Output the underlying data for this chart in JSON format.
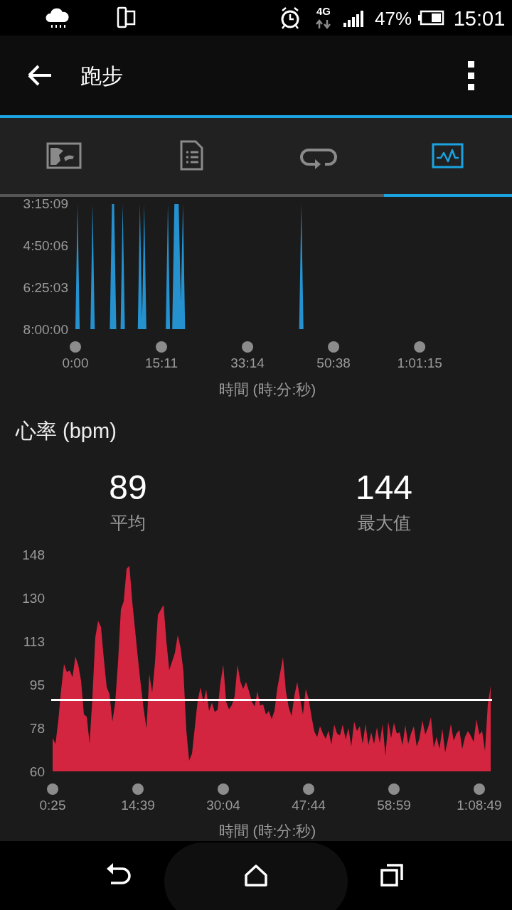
{
  "chart_data": [
    {
      "type": "area",
      "annotations": [
        "跑步",
        "4G",
        "47%",
        "15:01"
      ],
      "xlabel": "時間 (時:分:秒)",
      "categories": [
        "0:00",
        null,
        null,
        null,
        null,
        null,
        null,
        null,
        null,
        null,
        null,
        null,
        null,
        null,
        null,
        null,
        null,
        null,
        null,
        null,
        null,
        null,
        null,
        null,
        null,
        null,
        null,
        null,
        null,
        null,
        null,
        null,
        null,
        null,
        null,
        null,
        null,
        null,
        null,
        null,
        "15:11",
        null,
        null,
        null,
        null,
        null,
        null,
        null,
        null,
        null,
        null,
        null,
        null,
        null,
        null,
        null,
        null,
        null,
        null,
        null,
        null,
        null,
        null,
        null,
        null,
        null,
        null,
        null,
        null,
        null,
        null,
        null,
        null,
        null,
        null,
        null,
        null,
        null,
        null,
        null,
        "33:14",
        null,
        null,
        null,
        null,
        null,
        null,
        null,
        null,
        null,
        null,
        null,
        null,
        null,
        null,
        null,
        null,
        null,
        null,
        null,
        null,
        null,
        null,
        null,
        null,
        null,
        null,
        null,
        null,
        null,
        null,
        null,
        null,
        null,
        null,
        null,
        null,
        null,
        null,
        null,
        "50:38",
        null,
        null,
        null,
        null,
        null,
        null,
        null,
        null,
        null,
        null,
        null,
        null,
        null,
        null,
        null,
        null,
        null,
        null,
        null,
        null,
        null,
        null,
        null,
        null,
        null,
        null,
        null,
        null,
        null,
        null,
        null,
        null,
        null,
        null,
        null,
        null,
        null,
        null,
        null,
        "1:01:15",
        null,
        null,
        null,
        null,
        null,
        null,
        null,
        null,
        null,
        null,
        null,
        null,
        null,
        null,
        null,
        null,
        null,
        null,
        null,
        null,
        null,
        null,
        null,
        null,
        null,
        null,
        null,
        null,
        null,
        null,
        null,
        null,
        null
      ],
      "series": [
        {
          "color": "#2591cf",
          "values": [
            28800,
            11800,
            28800,
            28800,
            28800,
            28800,
            28800,
            28800,
            11800,
            28800,
            28800,
            28800,
            28800,
            28800,
            28800,
            28800,
            28800,
            11800,
            11800,
            28800,
            28800,
            28800,
            11800,
            28800,
            28800,
            28800,
            28800,
            28800,
            28800,
            28800,
            11800,
            27500,
            11800,
            28800,
            28800,
            28800,
            28800,
            28800,
            28800,
            28800,
            28800,
            28800,
            28800,
            11800,
            28800,
            28800,
            11800,
            11800,
            11800,
            25000,
            11800,
            28800,
            28800,
            28800,
            28800,
            28800,
            28800,
            28800,
            28800,
            28800,
            28800,
            28800,
            28800,
            28800,
            28800,
            28800,
            28800,
            28800,
            28800,
            28800,
            28800,
            28800,
            28800,
            28800,
            28800,
            28800,
            28800,
            28800,
            28800,
            28800,
            28800,
            28800,
            28800,
            28800,
            28800,
            28800,
            28800,
            28800,
            28800,
            28800,
            28800,
            28800,
            28800,
            28800,
            28800,
            28800,
            28800,
            28800,
            28800,
            28800,
            28800,
            28800,
            28800,
            28800,
            28800,
            11800,
            28800,
            28800,
            28800,
            28800,
            28800,
            28800,
            28800,
            28800,
            28800,
            28800,
            28800,
            28800,
            28800,
            28800,
            28800,
            28800,
            28800,
            28800,
            28800,
            28800,
            28800,
            28800,
            28800,
            28800,
            28800,
            28800,
            28800,
            28800,
            28800,
            28800,
            28800,
            28800,
            28800,
            28800,
            28800,
            28800,
            28800,
            28800,
            28800,
            28800,
            28800,
            28800,
            28800,
            28800,
            28800,
            28800,
            28800,
            28800,
            28800,
            28800,
            28800,
            28800,
            28800,
            28800,
            28800,
            28800,
            28800,
            28800,
            28800,
            28800,
            28800,
            28800,
            28800,
            28800,
            28800,
            28800,
            28800,
            28800,
            28800,
            28800,
            28800,
            28800,
            28800,
            28800,
            28800,
            28800,
            28800,
            28800,
            28800,
            28800,
            28800,
            28800,
            28800,
            28800,
            28800,
            28800,
            28800,
            28800
          ]
        }
      ],
      "ylim": [
        28800,
        11709
      ],
      "yticks": [
        {
          "value": 28800,
          "label": "8:00:00"
        },
        {
          "value": 23103,
          "label": "6:25:03"
        },
        {
          "value": 17406,
          "label": "4:50:06"
        },
        {
          "value": 11709,
          "label": "3:15:09"
        }
      ]
    },
    {
      "type": "area",
      "title": "心率 (bpm)",
      "annotations": [
        "89",
        "平均",
        "144",
        "最大值"
      ],
      "xlabel": "時間 (時:分:秒)",
      "categories": [
        "0:25",
        null,
        null,
        null,
        null,
        null,
        null,
        null,
        null,
        null,
        null,
        null,
        null,
        null,
        null,
        null,
        null,
        null,
        null,
        null,
        null,
        null,
        null,
        null,
        null,
        null,
        null,
        null,
        null,
        null,
        "14:39",
        null,
        null,
        null,
        null,
        null,
        null,
        null,
        null,
        null,
        null,
        null,
        null,
        null,
        null,
        null,
        null,
        null,
        null,
        null,
        null,
        null,
        null,
        null,
        null,
        null,
        null,
        null,
        null,
        null,
        "30:04",
        null,
        null,
        null,
        null,
        null,
        null,
        null,
        null,
        null,
        null,
        null,
        null,
        null,
        null,
        null,
        null,
        null,
        null,
        null,
        null,
        null,
        null,
        null,
        null,
        null,
        null,
        null,
        null,
        null,
        "47:44",
        null,
        null,
        null,
        null,
        null,
        null,
        null,
        null,
        null,
        null,
        null,
        null,
        null,
        null,
        null,
        null,
        null,
        null,
        null,
        null,
        null,
        null,
        null,
        null,
        null,
        null,
        null,
        null,
        null,
        "58:59",
        null,
        null,
        null,
        null,
        null,
        null,
        null,
        null,
        null,
        null,
        null,
        null,
        null,
        null,
        null,
        null,
        null,
        null,
        null,
        null,
        null,
        null,
        null,
        null,
        null,
        null,
        null,
        null,
        null,
        "1:08:49",
        null,
        null,
        null,
        null
      ],
      "series": [
        {
          "color": "#d42540",
          "values": [
            73.5,
            71.1,
            80.6,
            93.2,
            103.6,
            100.3,
            100.9,
            98.2,
            106.6,
            103.2,
            96.8,
            83.1,
            82.2,
            71.3,
            90.2,
            114.3,
            121.1,
            118.6,
            105.7,
            94.2,
            91.3,
            80.2,
            87.9,
            104.5,
            125.7,
            129,
            142.2,
            143.4,
            128.8,
            117.3,
            105.7,
            95.1,
            85.3,
            77.3,
            99.4,
            92,
            104.3,
            123.5,
            125.6,
            127.6,
            112.6,
            101.1,
            104.6,
            108.1,
            115.3,
            110.1,
            100.4,
            76.6,
            64.3,
            67.2,
            78,
            88.7,
            94.1,
            87.9,
            93.2,
            84.5,
            87.9,
            84.1,
            85,
            96,
            103.3,
            88.2,
            85.2,
            86.9,
            90.5,
            103.3,
            96.5,
            93.4,
            96.3,
            92.7,
            88.4,
            86.3,
            92.4,
            86.7,
            87.2,
            83.1,
            84.5,
            81.2,
            84.5,
            93.8,
            100,
            106.4,
            92.6,
            86,
            82.4,
            90.7,
            96.3,
            89.4,
            83.1,
            93.4,
            89.4,
            82.4,
            76.2,
            73.9,
            78.3,
            75.4,
            73.2,
            76.5,
            70.9,
            79,
            75.4,
            74.6,
            79,
            73,
            77.6,
            70.1,
            80.2,
            76.4,
            78.3,
            71.1,
            79.2,
            70.6,
            75.9,
            71.1,
            77.8,
            71.5,
            79.2,
            66.3,
            80.2,
            73.5,
            79.7,
            75.4,
            75.9,
            70.6,
            78.8,
            71.1,
            75.4,
            78.3,
            70.1,
            73.5,
            80.7,
            74.9,
            77.8,
            82.1,
            69.6,
            74,
            69.1,
            77.3,
            67.7,
            73,
            79.2,
            72.5,
            75.4,
            76.8,
            69.1,
            74,
            76.4,
            74.4,
            72,
            81.2,
            74.9,
            76.4,
            68.2,
            87.2,
            94.6
          ]
        }
      ],
      "ylim": [
        60,
        148
      ],
      "yticks": [
        60,
        {
          "value": 77.6,
          "label": "78"
        },
        {
          "value": 95.2,
          "label": "95"
        },
        {
          "value": 112.8,
          "label": "113"
        },
        {
          "value": 130.4,
          "label": "130"
        },
        148
      ],
      "ref_lines": [
        {
          "axis": "y",
          "value": 89,
          "color": "#ffffff"
        }
      ]
    }
  ]
}
